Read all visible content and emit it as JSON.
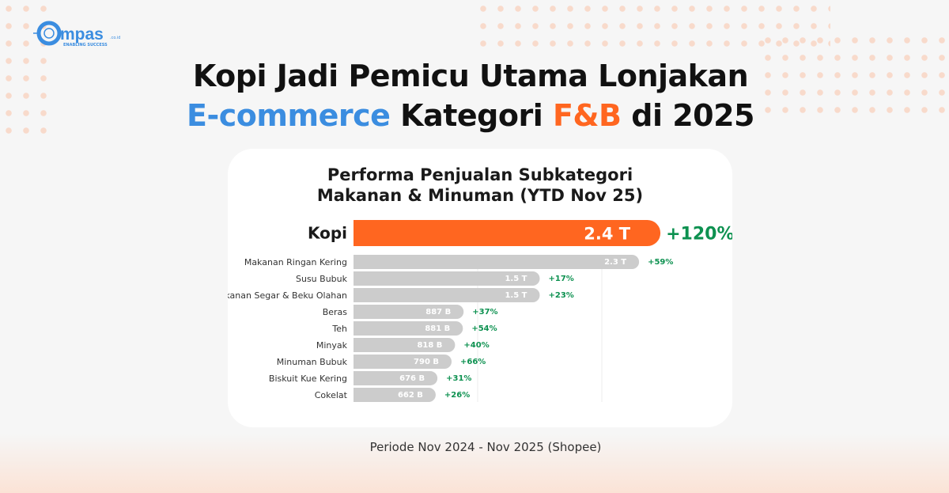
{
  "header": {
    "title_line1": "Kopi Jadi Pemicu Utama Lonjakan",
    "title_line2_part1": "E-commerce",
    "title_line2_part2": " Kategori ",
    "title_line2_part3": "F&B",
    "title_line2_part4": " di 2025"
  },
  "logo": {
    "text": "Compas",
    "suffix": ".co.id",
    "tagline": "ENABLING SUCCESS"
  },
  "colors": {
    "accent_blue": "#3b8de0",
    "accent_orange": "#ff6620",
    "bar_gray": "#cccccc",
    "growth_green": "#0d9150"
  },
  "footer": {
    "note": "Periode Nov 2024 - Nov 2025 (Shopee)"
  },
  "chart_data": {
    "type": "bar",
    "orientation": "horizontal",
    "title": "Performa Penjualan Subkategori Makanan & Minuman (YTD Nov 25)",
    "title_line1": "Performa Penjualan Subkategori",
    "title_line2": "Makanan & Minuman (YTD Nov 25)",
    "categories": [
      "Kopi",
      "Makanan Ringan Kering",
      "Susu Bubuk",
      "Makanan Segar & Beku Olahan",
      "Beras",
      "Teh",
      "Minyak",
      "Minuman Bubuk",
      "Biskuit Kue Kering",
      "Cokelat"
    ],
    "values_trillion": [
      2.4,
      2.3,
      1.5,
      1.5,
      0.887,
      0.881,
      0.818,
      0.79,
      0.676,
      0.662
    ],
    "value_labels": [
      "2.4 T",
      "2.3 T",
      "1.5 T",
      "1.5 T",
      "887 B",
      "881 B",
      "818 B",
      "790 B",
      "676 B",
      "662 B"
    ],
    "growth_labels": [
      "+120%",
      "+59%",
      "+17%",
      "+23%",
      "+37%",
      "+54%",
      "+40%",
      "+66%",
      "+31%",
      "+26%"
    ],
    "highlight": "Kopi",
    "grid": true
  }
}
